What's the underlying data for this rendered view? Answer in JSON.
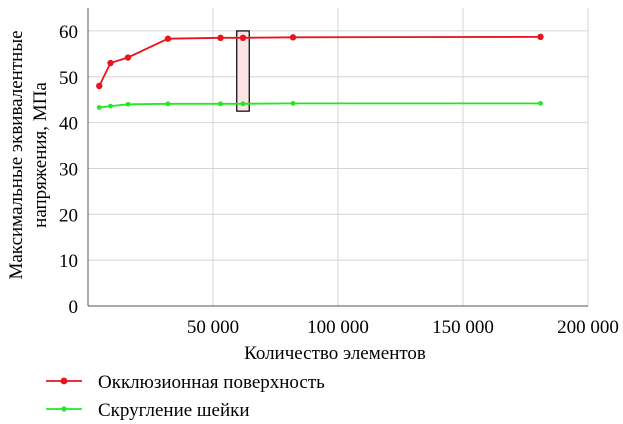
{
  "chart_data": {
    "type": "line",
    "title": "",
    "xlabel": "Количество элементов",
    "ylabel_lines": [
      "Максимальные эквивалентные",
      "напряжения, МПа"
    ],
    "xlim": [
      0,
      200000
    ],
    "ylim": [
      0,
      65
    ],
    "x_ticks": [
      50000,
      100000,
      150000,
      200000
    ],
    "x_tick_labels": [
      "50 000",
      "100 000",
      "150 000",
      "200 000"
    ],
    "y_ticks": [
      0,
      10,
      20,
      30,
      40,
      50,
      60
    ],
    "y_tick_labels": [
      "0",
      "10",
      "20",
      "30",
      "40",
      "50",
      "60"
    ],
    "grid": true,
    "legend_position": "bottom-left",
    "series": [
      {
        "name": "Окклюзионная поверхность",
        "color": "#e8141e",
        "x": [
          4500,
          9000,
          16000,
          32000,
          53000,
          62000,
          82000,
          181000
        ],
        "y": [
          48.0,
          53.0,
          54.2,
          58.3,
          58.5,
          58.5,
          58.6,
          58.7
        ]
      },
      {
        "name": "Скругление шейки",
        "color": "#22e822",
        "x": [
          4500,
          9000,
          16000,
          32000,
          53000,
          62000,
          82000,
          181000
        ],
        "y": [
          43.3,
          43.6,
          44.0,
          44.1,
          44.1,
          44.1,
          44.2,
          44.2
        ]
      }
    ],
    "highlight": {
      "x_range": [
        59500,
        64500
      ],
      "y_range": [
        42.5,
        60.0
      ],
      "fill": "#fbe4e4",
      "stroke": "#000000"
    }
  }
}
